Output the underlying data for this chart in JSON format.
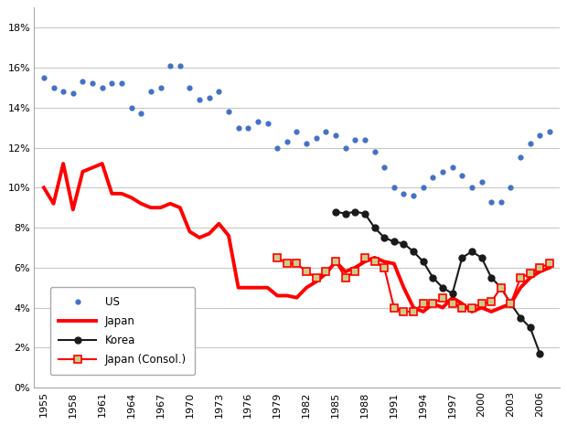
{
  "us_x": [
    1955,
    1956,
    1957,
    1958,
    1959,
    1960,
    1961,
    1962,
    1963,
    1964,
    1965,
    1966,
    1967,
    1968,
    1969,
    1970,
    1971,
    1972,
    1973,
    1974,
    1975,
    1976,
    1977,
    1978,
    1979,
    1980,
    1981,
    1982,
    1983,
    1984,
    1985,
    1986,
    1987,
    1988,
    1989,
    1990,
    1991,
    1992,
    1993,
    1994,
    1995,
    1996,
    1997,
    1998,
    1999,
    2000,
    2001,
    2002,
    2003,
    2004,
    2005,
    2006,
    2007
  ],
  "us_y": [
    0.155,
    0.15,
    0.148,
    0.147,
    0.153,
    0.152,
    0.15,
    0.152,
    0.152,
    0.14,
    0.137,
    0.148,
    0.15,
    0.161,
    0.161,
    0.15,
    0.144,
    0.145,
    0.148,
    0.138,
    0.13,
    0.13,
    0.133,
    0.132,
    0.12,
    0.123,
    0.128,
    0.122,
    0.125,
    0.128,
    0.126,
    0.12,
    0.124,
    0.124,
    0.118,
    0.11,
    0.1,
    0.097,
    0.096,
    0.1,
    0.105,
    0.108,
    0.11,
    0.106,
    0.1,
    0.103,
    0.093,
    0.093,
    0.1,
    0.115,
    0.122,
    0.126,
    0.128
  ],
  "japan_x": [
    1955,
    1956,
    1957,
    1958,
    1959,
    1960,
    1961,
    1962,
    1963,
    1964,
    1965,
    1966,
    1967,
    1968,
    1969,
    1970,
    1971,
    1972,
    1973,
    1974,
    1975,
    1976,
    1977,
    1978,
    1979,
    1980,
    1981,
    1982,
    1983,
    1984,
    1985,
    1986,
    1987,
    1988,
    1989,
    1990,
    1991,
    1992,
    1993,
    1994,
    1995,
    1996,
    1997,
    1998,
    1999,
    2000,
    2001,
    2002,
    2003,
    2004,
    2005,
    2006,
    2007
  ],
  "japan_y": [
    0.1,
    0.092,
    0.112,
    0.089,
    0.108,
    0.11,
    0.112,
    0.097,
    0.097,
    0.095,
    0.092,
    0.09,
    0.09,
    0.092,
    0.09,
    0.078,
    0.075,
    0.077,
    0.082,
    0.076,
    0.05,
    0.05,
    0.05,
    0.05,
    0.046,
    0.046,
    0.045,
    0.05,
    0.053,
    0.057,
    0.063,
    0.058,
    0.06,
    0.063,
    0.065,
    0.063,
    0.062,
    0.05,
    0.04,
    0.038,
    0.042,
    0.04,
    0.045,
    0.042,
    0.038,
    0.04,
    0.038,
    0.04,
    0.042,
    0.05,
    0.055,
    0.058,
    0.06
  ],
  "korea_x": [
    1985,
    1986,
    1987,
    1988,
    1989,
    1990,
    1991,
    1992,
    1993,
    1994,
    1995,
    1996,
    1997,
    1998,
    1999,
    2000,
    2001,
    2002,
    2003,
    2004,
    2005,
    2006
  ],
  "korea_y": [
    0.088,
    0.087,
    0.088,
    0.087,
    0.08,
    0.075,
    0.073,
    0.072,
    0.068,
    0.063,
    0.055,
    0.05,
    0.047,
    0.065,
    0.068,
    0.065,
    0.055,
    0.05,
    0.042,
    0.035,
    0.03,
    0.017
  ],
  "consol_x": [
    1979,
    1980,
    1981,
    1982,
    1983,
    1984,
    1985,
    1986,
    1987,
    1988,
    1989,
    1990,
    1991,
    1992,
    1993,
    1994,
    1995,
    1996,
    1997,
    1998,
    1999,
    2000,
    2001,
    2002,
    2003,
    2004,
    2005,
    2006,
    2007
  ],
  "consol_y": [
    0.065,
    0.062,
    0.062,
    0.058,
    0.055,
    0.058,
    0.063,
    0.055,
    0.058,
    0.065,
    0.063,
    0.06,
    0.04,
    0.038,
    0.038,
    0.042,
    0.042,
    0.045,
    0.042,
    0.04,
    0.04,
    0.042,
    0.043,
    0.05,
    0.042,
    0.055,
    0.057,
    0.06,
    0.062
  ],
  "us_color": "#4472C4",
  "japan_color": "#FF0000",
  "korea_color": "#1A1A1A",
  "consol_marker_fill": "#CCCC88",
  "consol_color": "#FF0000",
  "background_color": "#FFFFFF",
  "grid_color": "#C8C8C8",
  "ylim": [
    0,
    0.19
  ],
  "yticks": [
    0,
    0.02,
    0.04,
    0.06,
    0.08,
    0.1,
    0.12,
    0.14,
    0.16,
    0.18
  ],
  "xlim": [
    1954,
    2008
  ],
  "xtick_years": [
    1955,
    1958,
    1961,
    1964,
    1967,
    1970,
    1973,
    1976,
    1979,
    1982,
    1985,
    1988,
    1991,
    1994,
    1997,
    2000,
    2003,
    2006
  ],
  "legend_labels": [
    "US",
    "Japan",
    "Korea",
    "Japan (Consol.)"
  ]
}
